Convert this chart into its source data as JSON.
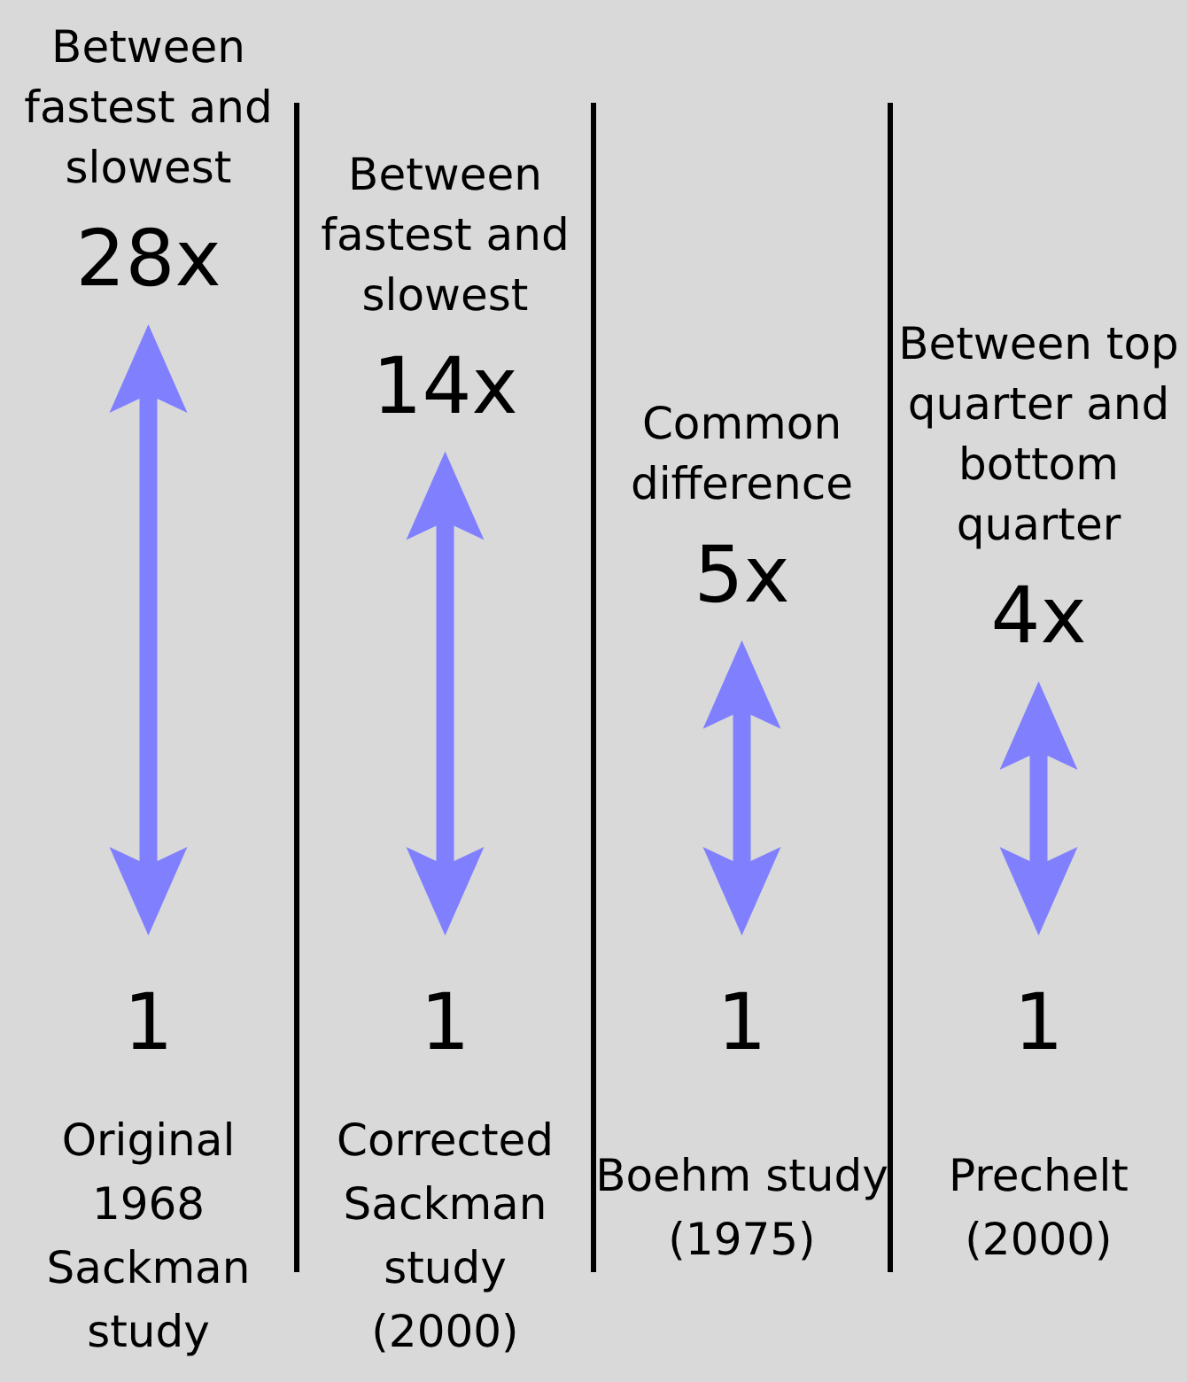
{
  "chart_data": {
    "type": "other",
    "categories": [
      "Original 1968 Sackman study",
      "Corrected Sackman study (2000)",
      "Boehm study (1975)",
      "Prechelt (2000)"
    ],
    "values": [
      28,
      14,
      5,
      4
    ],
    "value_labels": [
      "28x",
      "14x",
      "5x",
      "4x"
    ],
    "color": "#8080ff",
    "annotations": [
      {
        "text": "Between fastest and slowest",
        "x": "Original 1968 Sackman study"
      },
      {
        "text": "Between fastest and slowest",
        "x": "Corrected Sackman study (2000)"
      },
      {
        "text": "Common difference",
        "x": "Boehm study (1975)"
      },
      {
        "text": "Between top quarter and bottom quarter",
        "x": "Prechelt (2000)"
      },
      {
        "text": "1",
        "x": "Original 1968 Sackman study"
      },
      {
        "text": "1",
        "x": "Corrected Sackman study (2000)"
      },
      {
        "text": "1",
        "x": "Boehm study (1975)"
      },
      {
        "text": "1",
        "x": "Prechelt (2000)"
      }
    ]
  }
}
